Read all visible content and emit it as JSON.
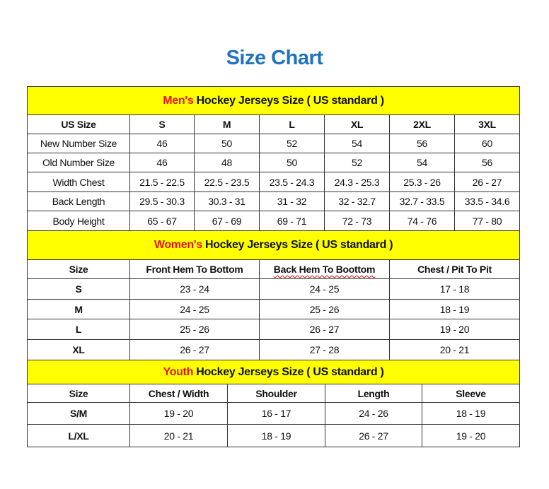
{
  "title": "Size Chart",
  "colors": {
    "title": "#1f73c0",
    "section_bg": "#ffff00",
    "highlight": "#e8140c"
  },
  "sections": [
    {
      "highlight": "Men's",
      "heading": " Hockey Jerseys Size ( US standard )",
      "columns": [
        "US Size",
        "S",
        "M",
        "L",
        "XL",
        "2XL",
        "3XL"
      ],
      "rows": [
        [
          "New Number Size",
          "46",
          "50",
          "52",
          "54",
          "56",
          "60"
        ],
        [
          "Old Number Size",
          "46",
          "48",
          "50",
          "52",
          "54",
          "56"
        ],
        [
          "Width Chest",
          "21.5 - 22.5",
          "22.5 - 23.5",
          "23.5 - 24.3",
          "24.3 - 25.3",
          "25.3 - 26",
          "26 - 27"
        ],
        [
          "Back Length",
          "29.5 - 30.3",
          "30.3 - 31",
          "31 - 32",
          "32 - 32.7",
          "32.7 - 33.5",
          "33.5 - 34.6"
        ],
        [
          "Body Height",
          "65 - 67",
          "67 - 69",
          "69 - 71",
          "72 - 73",
          "74 - 76",
          "77 - 80"
        ]
      ]
    },
    {
      "highlight": "Women's",
      "heading": " Hockey Jerseys Size ( US standard )",
      "columns": [
        "Size",
        "Front Hem To Bottom",
        "Back Hem To Boottom",
        "Chest / Pit To Pit"
      ],
      "rows": [
        [
          "S",
          "23 - 24",
          "24 - 25",
          "17 - 18"
        ],
        [
          "M",
          "24 - 25",
          "25 - 26",
          "18 - 19"
        ],
        [
          "L",
          "25 - 26",
          "26 - 27",
          "19 - 20"
        ],
        [
          "XL",
          "26 - 27",
          "27 - 28",
          "20 - 21"
        ]
      ]
    },
    {
      "highlight": "Youth",
      "heading": " Hockey Jerseys Size ( US standard )",
      "columns": [
        "Size",
        "Chest / Width",
        "Shoulder",
        "Length",
        "Sleeve"
      ],
      "rows": [
        [
          "S/M",
          "19 - 20",
          "16 - 17",
          "24 - 26",
          "18 - 19"
        ],
        [
          "L/XL",
          "20 - 21",
          "18 - 19",
          "26 - 27",
          "19 - 20"
        ]
      ]
    }
  ]
}
